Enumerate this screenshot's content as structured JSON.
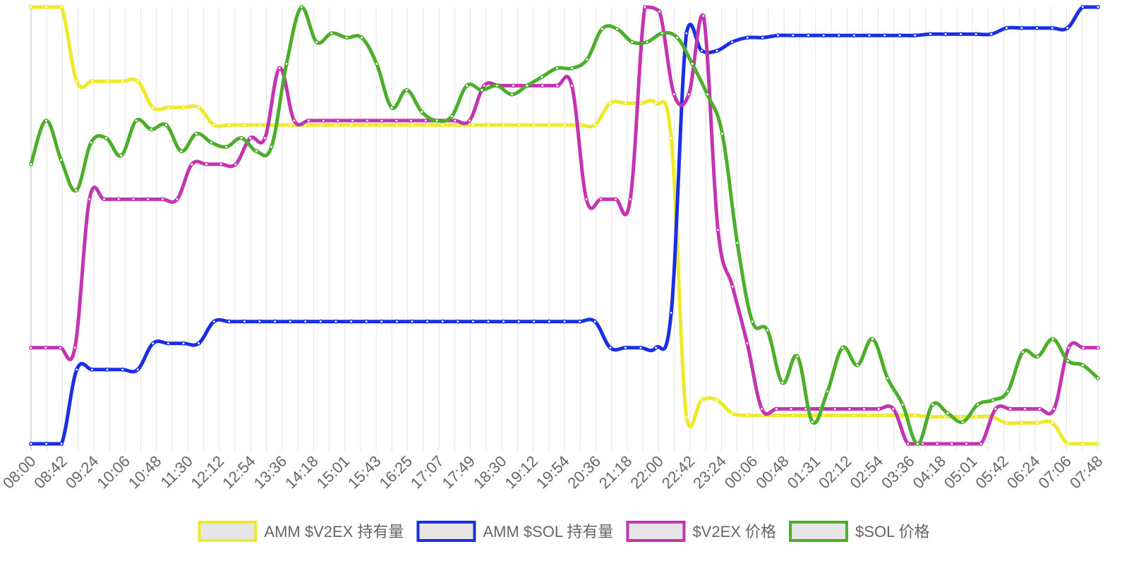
{
  "chart_data": {
    "type": "line",
    "x_ticks": [
      "08:00",
      "08:42",
      "09:24",
      "10:06",
      "10:48",
      "11:30",
      "12:12",
      "12:54",
      "13:36",
      "14:18",
      "15:01",
      "15:43",
      "16:25",
      "17:07",
      "17:49",
      "18:30",
      "19:12",
      "19:54",
      "20:36",
      "21:18",
      "22:00",
      "22:42",
      "23:24",
      "00:06",
      "00:48",
      "01:31",
      "02:12",
      "02:54",
      "03:36",
      "04:18",
      "05:01",
      "05:42",
      "06:24",
      "07:06",
      "07:48"
    ],
    "y_axis": {
      "min": 0,
      "max": 1,
      "tick_labels_shown": false
    },
    "grid": {
      "vertical": true,
      "horizontal": false
    },
    "legend_position": "bottom",
    "series": [
      {
        "name": "AMM $V2EX 持有量",
        "color": "#eeea2a",
        "values": [
          1.0,
          1.0,
          1.0,
          0.83,
          0.83,
          0.83,
          0.83,
          0.83,
          0.77,
          0.77,
          0.77,
          0.77,
          0.73,
          0.73,
          0.73,
          0.73,
          0.73,
          0.73,
          0.73,
          0.73,
          0.73,
          0.73,
          0.73,
          0.73,
          0.73,
          0.73,
          0.73,
          0.73,
          0.73,
          0.73,
          0.73,
          0.73,
          0.73,
          0.73,
          0.73,
          0.73,
          0.73,
          0.73,
          0.78,
          0.78,
          0.78,
          0.78,
          0.7,
          0.06,
          0.1,
          0.1,
          0.07,
          0.065,
          0.065,
          0.065,
          0.065,
          0.065,
          0.065,
          0.065,
          0.065,
          0.065,
          0.065,
          0.065,
          0.065,
          0.062,
          0.062,
          0.062,
          0.062,
          0.062,
          0.048,
          0.048,
          0.048,
          0.048,
          0.0,
          0.0,
          0.0
        ]
      },
      {
        "name": "AMM $SOL 持有量",
        "color": "#1a2ee6",
        "values": [
          0.0,
          0.0,
          0.0,
          0.17,
          0.17,
          0.17,
          0.17,
          0.17,
          0.23,
          0.23,
          0.23,
          0.23,
          0.28,
          0.28,
          0.28,
          0.28,
          0.28,
          0.28,
          0.28,
          0.28,
          0.28,
          0.28,
          0.28,
          0.28,
          0.28,
          0.28,
          0.28,
          0.28,
          0.28,
          0.28,
          0.28,
          0.28,
          0.28,
          0.28,
          0.28,
          0.28,
          0.28,
          0.28,
          0.22,
          0.22,
          0.22,
          0.22,
          0.3,
          0.94,
          0.9,
          0.9,
          0.92,
          0.93,
          0.93,
          0.935,
          0.935,
          0.935,
          0.935,
          0.935,
          0.935,
          0.935,
          0.935,
          0.935,
          0.935,
          0.938,
          0.938,
          0.938,
          0.938,
          0.938,
          0.952,
          0.952,
          0.952,
          0.952,
          0.952,
          1.0,
          1.0
        ]
      },
      {
        "name": "$V2EX 价格",
        "color": "#c234b2",
        "values": [
          0.22,
          0.22,
          0.22,
          0.22,
          0.56,
          0.56,
          0.56,
          0.56,
          0.56,
          0.56,
          0.56,
          0.64,
          0.64,
          0.64,
          0.64,
          0.7,
          0.7,
          0.86,
          0.74,
          0.74,
          0.74,
          0.74,
          0.74,
          0.74,
          0.74,
          0.74,
          0.74,
          0.74,
          0.74,
          0.74,
          0.74,
          0.82,
          0.82,
          0.82,
          0.82,
          0.82,
          0.82,
          0.82,
          0.56,
          0.56,
          0.56,
          0.56,
          1.0,
          0.99,
          0.8,
          0.8,
          0.98,
          0.49,
          0.36,
          0.23,
          0.08,
          0.08,
          0.08,
          0.08,
          0.08,
          0.08,
          0.08,
          0.08,
          0.08,
          0.08,
          0.0,
          0.0,
          0.0,
          0.0,
          0.0,
          0.0,
          0.08,
          0.08,
          0.08,
          0.08,
          0.08,
          0.22,
          0.22,
          0.22
        ]
      },
      {
        "name": "$SOL 价格",
        "color": "#4cae2b",
        "values": [
          0.64,
          0.74,
          0.65,
          0.58,
          0.69,
          0.7,
          0.66,
          0.74,
          0.72,
          0.73,
          0.67,
          0.71,
          0.69,
          0.68,
          0.7,
          0.67,
          0.68,
          0.87,
          1.0,
          0.92,
          0.94,
          0.93,
          0.93,
          0.87,
          0.77,
          0.81,
          0.76,
          0.74,
          0.75,
          0.82,
          0.81,
          0.82,
          0.8,
          0.82,
          0.84,
          0.86,
          0.86,
          0.88,
          0.95,
          0.95,
          0.92,
          0.92,
          0.94,
          0.93,
          0.87,
          0.8,
          0.71,
          0.46,
          0.28,
          0.26,
          0.14,
          0.2,
          0.05,
          0.12,
          0.22,
          0.18,
          0.24,
          0.15,
          0.09,
          0.0,
          0.09,
          0.07,
          0.05,
          0.09,
          0.1,
          0.12,
          0.21,
          0.2,
          0.24,
          0.19,
          0.18,
          0.15
        ]
      }
    ]
  }
}
